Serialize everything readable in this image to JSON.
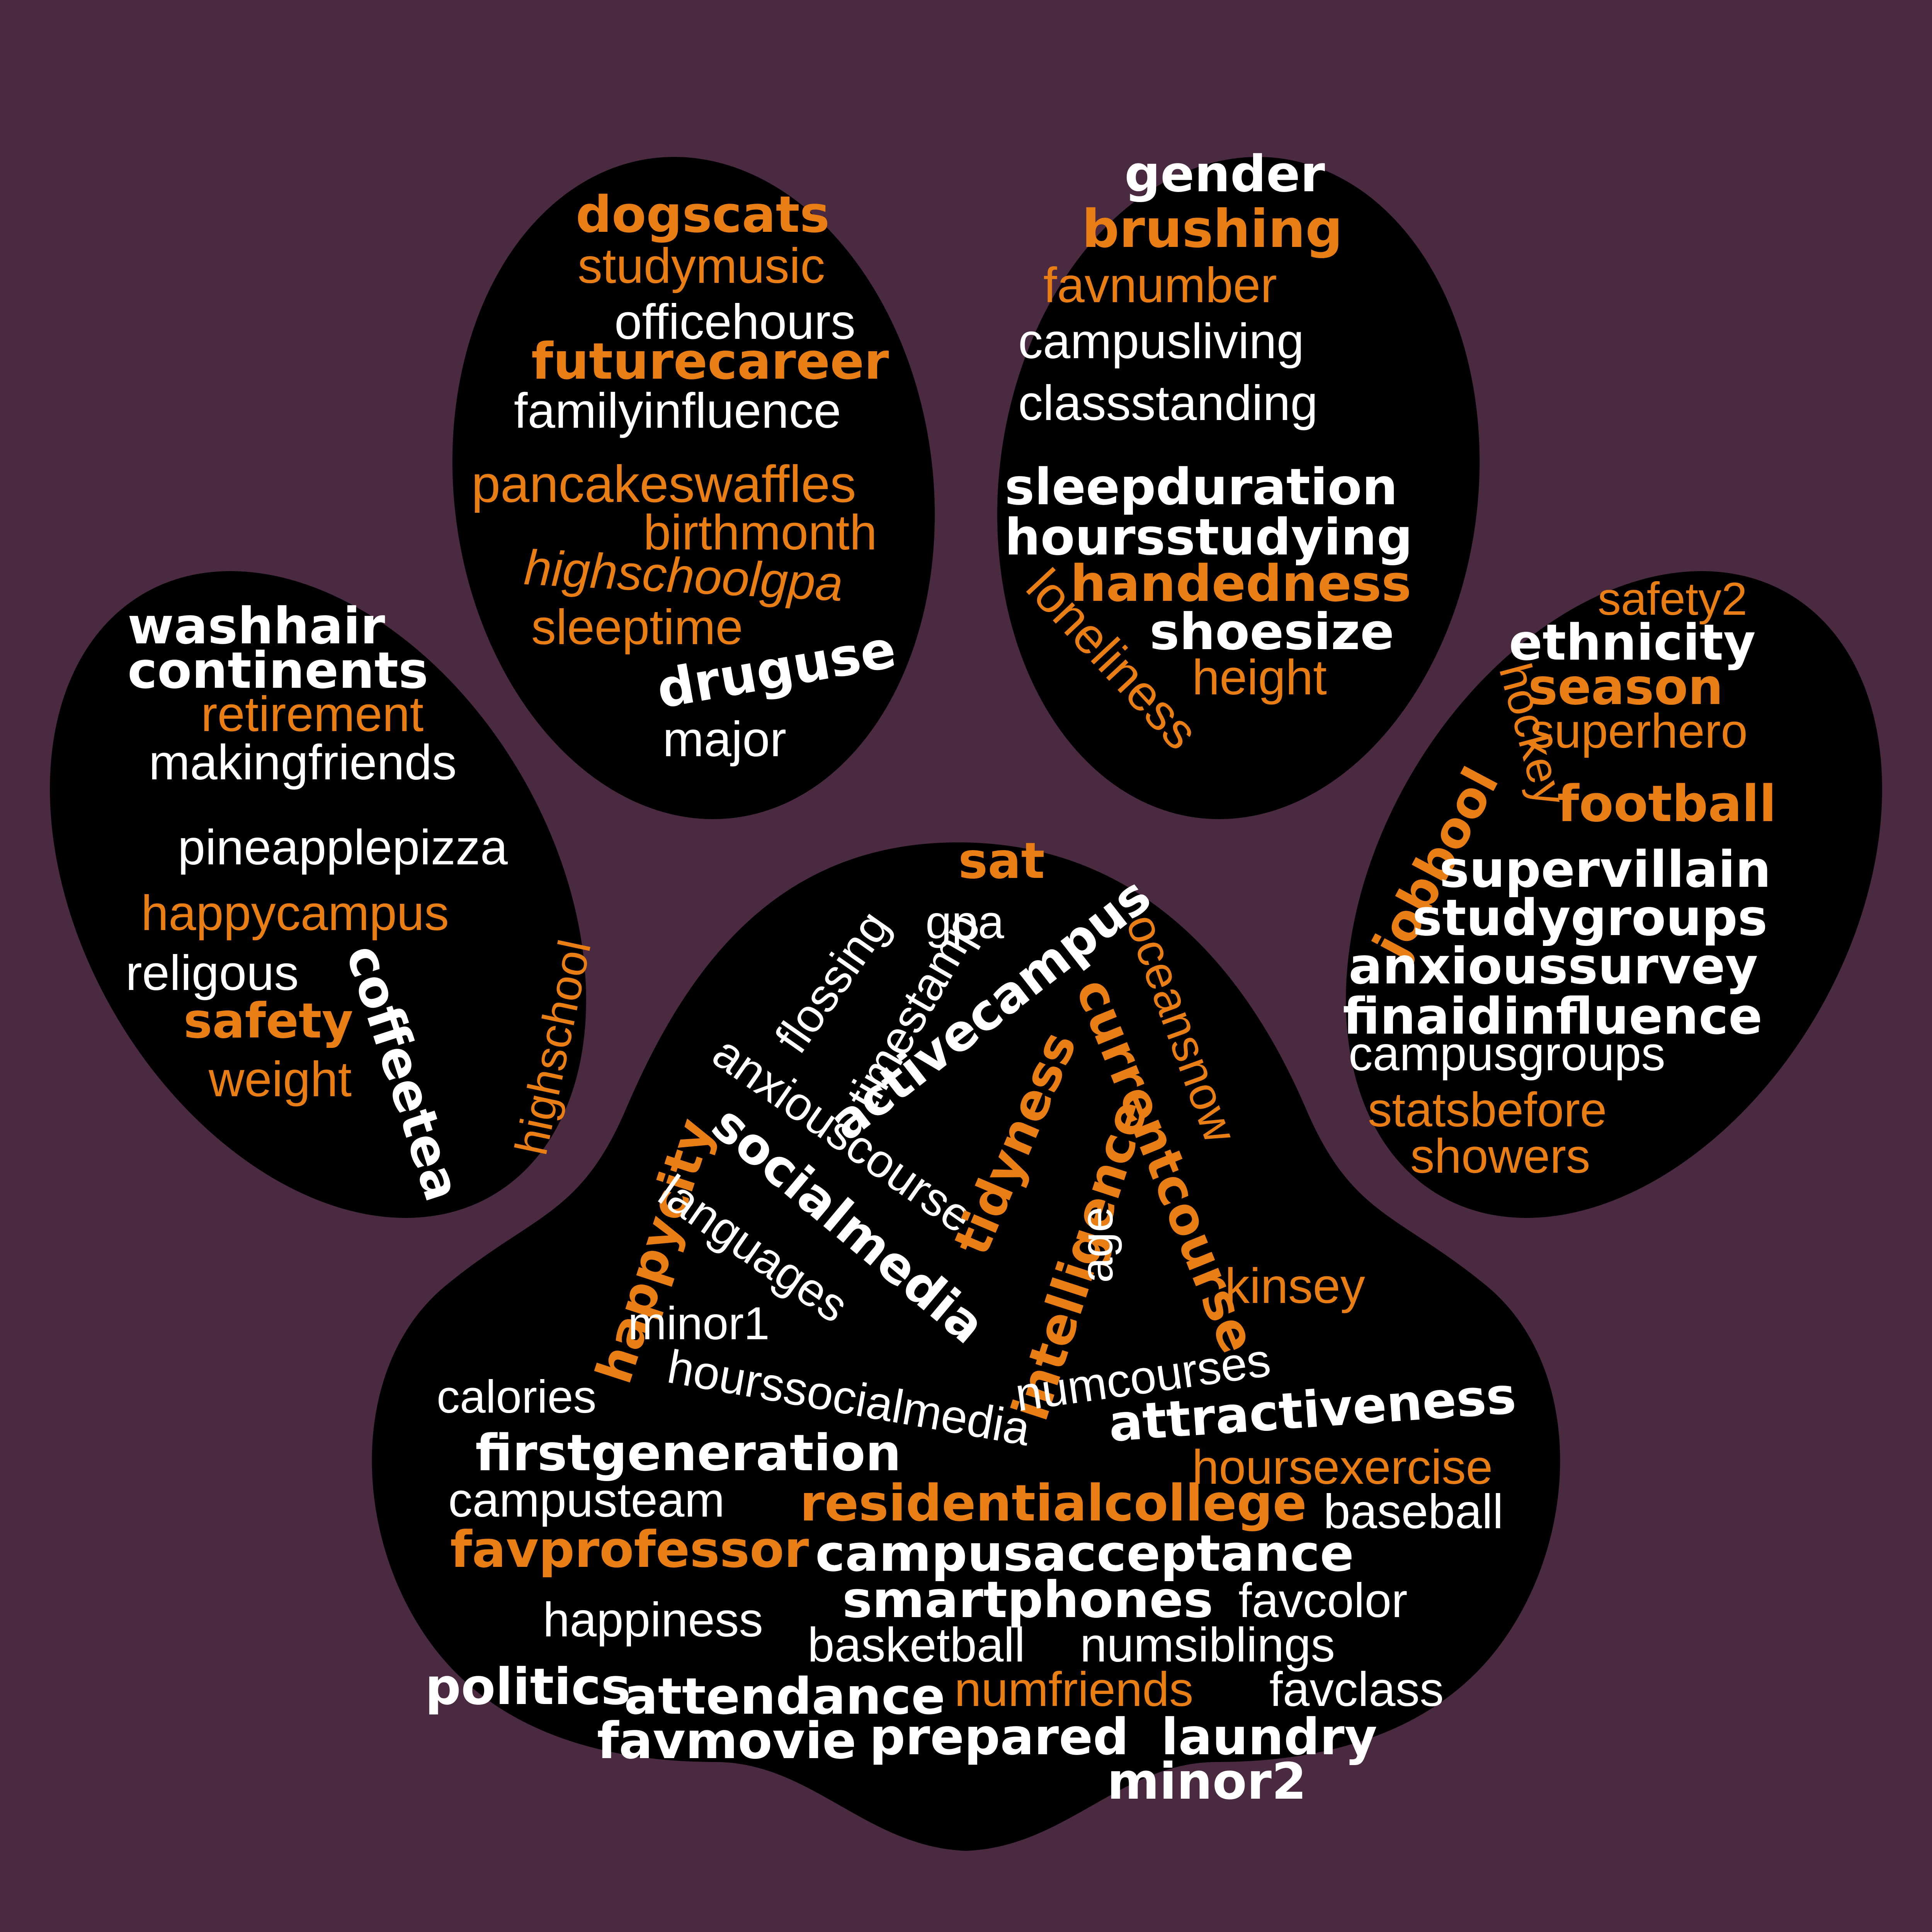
{
  "colors": {
    "background": "#4a2a40",
    "paw": "#000000",
    "white": "#ffffff",
    "orange": "#e97e14"
  },
  "words": {
    "left_toe": {
      "washhair": "washhair",
      "continents": "continents",
      "retirement": "retirement",
      "makingfriends": "makingfriends",
      "pineapplepizza": "pineapplepizza",
      "happycampus": "happycampus",
      "religous": "religous",
      "safety": "safety",
      "weight": "weight",
      "coffeetea": "coffeetea",
      "highschool": "highschool"
    },
    "upper_left_toe": {
      "dogscats": "dogscats",
      "studymusic": "studymusic",
      "officehours": "officehours",
      "futurecareer": "futurecareer",
      "familyinfluence": "familyinfluence",
      "pancakeswaffles": "pancakeswaffles",
      "birthmonth": "birthmonth",
      "highschoolgpa": "highschoolgpa",
      "sleeptime": "sleeptime",
      "druguse": "druguse",
      "major": "major"
    },
    "upper_right_toe": {
      "gender": "gender",
      "brushing": "brushing",
      "favnumber": "favnumber",
      "campusliving": "campusliving",
      "classstanding": "classstanding",
      "sleepduration": "sleepduration",
      "hoursstudying": "hoursstudying",
      "handedness": "handedness",
      "loneliness": "loneliness",
      "shoesize": "shoesize",
      "height": "height"
    },
    "right_toe": {
      "safety2": "safety2",
      "ethnicity": "ethnicity",
      "season": "season",
      "hockey": "hockey",
      "superhero": "superhero",
      "football": "football",
      "jobbool": "jobbool",
      "supervillain": "supervillain",
      "studygroups": "studygroups",
      "anxioussurvey": "anxioussurvey",
      "finaidinfluence": "finaidinfluence",
      "campusgroups": "campusgroups",
      "statsbefore": "statsbefore",
      "showers": "showers"
    },
    "main_pad": {
      "flossing": "flossing",
      "timestamp": "timestamp",
      "sat": "sat",
      "gpa": "gpa",
      "activecampus": "activecampus",
      "oceansnow": "oceansnow",
      "anxiouscourse": "anxiouscourse",
      "currentcourse": "currentcourse",
      "tidyness": "tidyness",
      "socialmedia": "socialmedia",
      "happycity": "happycity",
      "languages": "languages",
      "intelligence": "intelligence",
      "age": "age",
      "kinsey": "kinsey",
      "minor1": "minor1",
      "numcourses": "numcourses",
      "calories": "calories",
      "hourssocialmedia": "hourssocialmedia",
      "attractiveness": "attractiveness",
      "firstgeneration": "firstgeneration",
      "hoursexercise": "hoursexercise",
      "campusteam": "campusteam",
      "residentialcollege": "residentialcollege",
      "baseball": "baseball",
      "favprofessor": "favprofessor",
      "campusacceptance": "campusacceptance",
      "happiness": "happiness",
      "smartphones": "smartphones",
      "favcolor": "favcolor",
      "basketball": "basketball",
      "numsiblings": "numsiblings",
      "politics": "politics",
      "attendance": "attendance",
      "numfriends": "numfriends",
      "favclass": "favclass",
      "favmovie": "favmovie",
      "prepared": "prepared",
      "laundry": "laundry",
      "minor2": "minor2"
    }
  }
}
